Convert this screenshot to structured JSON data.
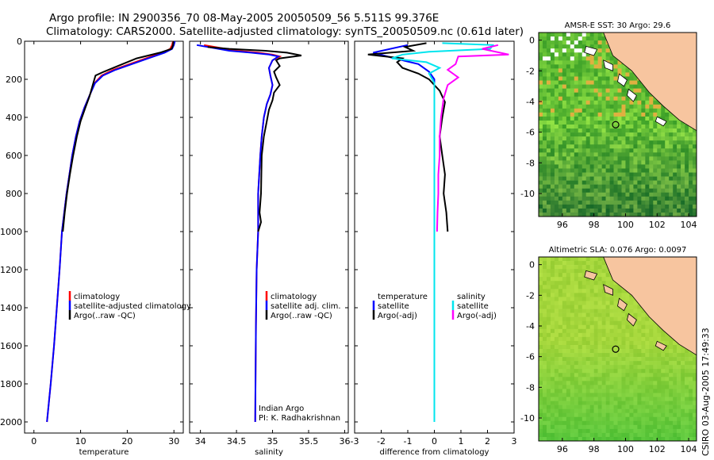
{
  "header": {
    "line1": "Argo profile: IN 2900356_70 08-May-2005 20050509_56 5.511S 99.376E",
    "line2": "Climatology: CARS2000. Satellite-adjusted climatology: synTS_20050509.nc (0.61d later)"
  },
  "stamp": "CSIRO 03-Aug-2005 17:49:33",
  "colors": {
    "red": "#ff0000",
    "blue": "#0000ff",
    "black": "#000000",
    "cyan": "#00e5ee",
    "magenta": "#ff00ff",
    "land": "#f7c59f",
    "coast": "#000000"
  },
  "chart_data": [
    {
      "id": "temp",
      "type": "line",
      "xlabel": "temperature",
      "xlim": [
        -2,
        32
      ],
      "xticks": [
        0,
        10,
        20,
        30
      ],
      "ylim": [
        0,
        2050
      ],
      "yticks": [
        0,
        200,
        400,
        600,
        800,
        1000,
        1200,
        1400,
        1600,
        1800,
        2000
      ],
      "ylabel_reversed": true,
      "legend": [
        "climatology",
        "satellite-adjusted climatology",
        "Argo(..raw -QC)"
      ],
      "series": [
        {
          "name": "climatology",
          "color": "red",
          "points": [
            [
              29.8,
              0
            ],
            [
              29.6,
              20
            ],
            [
              29.2,
              40
            ],
            [
              27.5,
              60
            ],
            [
              24,
              90
            ],
            [
              20.5,
              120
            ],
            [
              17,
              150
            ],
            [
              14.5,
              180
            ],
            [
              13,
              220
            ],
            [
              12,
              280
            ],
            [
              10.8,
              350
            ],
            [
              9.8,
              420
            ],
            [
              9,
              500
            ],
            [
              8.2,
              600
            ],
            [
              7.6,
              700
            ],
            [
              7,
              800
            ],
            [
              6.5,
              900
            ],
            [
              6,
              1000
            ],
            [
              5.5,
              1200
            ],
            [
              4.9,
              1400
            ],
            [
              4.3,
              1600
            ],
            [
              3.6,
              1800
            ],
            [
              2.8,
              2000
            ]
          ]
        },
        {
          "name": "satellite-adjusted climatology",
          "color": "blue",
          "points": [
            [
              30.2,
              0
            ],
            [
              30,
              20
            ],
            [
              29.6,
              40
            ],
            [
              28,
              60
            ],
            [
              24.5,
              90
            ],
            [
              21,
              120
            ],
            [
              17.5,
              150
            ],
            [
              14.8,
              180
            ],
            [
              13.1,
              220
            ],
            [
              12,
              280
            ],
            [
              10.8,
              350
            ],
            [
              9.8,
              420
            ],
            [
              9,
              500
            ],
            [
              8.2,
              600
            ],
            [
              7.6,
              700
            ],
            [
              7,
              800
            ],
            [
              6.5,
              900
            ],
            [
              6,
              1000
            ],
            [
              5.5,
              1200
            ],
            [
              4.9,
              1400
            ],
            [
              4.3,
              1600
            ],
            [
              3.6,
              1800
            ],
            [
              2.8,
              2000
            ]
          ]
        },
        {
          "name": "Argo(..raw -QC)",
          "color": "black",
          "points": [
            [
              29.9,
              0
            ],
            [
              29.8,
              20
            ],
            [
              29.5,
              40
            ],
            [
              27,
              60
            ],
            [
              22,
              90
            ],
            [
              18,
              130
            ],
            [
              15,
              160
            ],
            [
              13.2,
              180
            ],
            [
              12.6,
              230
            ],
            [
              11.9,
              290
            ],
            [
              11,
              350
            ],
            [
              10,
              420
            ],
            [
              9.2,
              500
            ],
            [
              8.4,
              600
            ],
            [
              7.7,
              700
            ],
            [
              7.1,
              800
            ],
            [
              6.6,
              900
            ],
            [
              6.2,
              1000
            ]
          ]
        }
      ]
    },
    {
      "id": "salt",
      "type": "line",
      "xlabel": "salinity",
      "xlim": [
        33.85,
        36.05
      ],
      "xticks": [
        34,
        34.5,
        35,
        35.5,
        36
      ],
      "xticklabels": [
        "34",
        "34.5",
        "35",
        "35.5",
        "36"
      ],
      "ylim": [
        0,
        2050
      ],
      "legend": [
        "climatology",
        "satellite adj. clim.",
        "Argo(..raw -QC)"
      ],
      "annotation": [
        "Indian Argo",
        "PI: K. Radhakrishnan"
      ],
      "series": [
        {
          "name": "climatology",
          "color": "red",
          "points": [
            [
              34.05,
              20
            ],
            [
              34.2,
              30
            ],
            [
              34.5,
              50
            ],
            [
              34.8,
              60
            ],
            [
              35.0,
              70
            ],
            [
              35.1,
              80
            ],
            [
              35.0,
              100
            ],
            [
              34.95,
              140
            ],
            [
              34.97,
              180
            ],
            [
              35.0,
              230
            ],
            [
              34.97,
              280
            ],
            [
              34.92,
              330
            ],
            [
              34.88,
              400
            ],
            [
              34.85,
              500
            ],
            [
              34.83,
              600
            ],
            [
              34.8,
              800
            ],
            [
              34.8,
              1000
            ],
            [
              34.78,
              1200
            ],
            [
              34.77,
              1500
            ],
            [
              34.76,
              2000
            ]
          ]
        },
        {
          "name": "satellite adj. clim.",
          "color": "blue",
          "points": [
            [
              33.95,
              20
            ],
            [
              34.1,
              30
            ],
            [
              34.4,
              50
            ],
            [
              34.7,
              60
            ],
            [
              34.95,
              70
            ],
            [
              35.08,
              80
            ],
            [
              35.0,
              100
            ],
            [
              34.95,
              140
            ],
            [
              34.97,
              180
            ],
            [
              35.0,
              230
            ],
            [
              34.97,
              280
            ],
            [
              34.92,
              330
            ],
            [
              34.88,
              400
            ],
            [
              34.85,
              500
            ],
            [
              34.83,
              600
            ],
            [
              34.8,
              800
            ],
            [
              34.8,
              1000
            ],
            [
              34.78,
              1200
            ],
            [
              34.77,
              1500
            ],
            [
              34.76,
              2000
            ]
          ]
        },
        {
          "name": "Argo(..raw -QC)",
          "color": "black",
          "points": [
            [
              34.1,
              30
            ],
            [
              34.4,
              40
            ],
            [
              34.9,
              50
            ],
            [
              35.2,
              60
            ],
            [
              35.4,
              75
            ],
            [
              35.1,
              90
            ],
            [
              35.05,
              100
            ],
            [
              35.1,
              130
            ],
            [
              35.02,
              160
            ],
            [
              35.05,
              190
            ],
            [
              35.1,
              230
            ],
            [
              35.02,
              270
            ],
            [
              35.0,
              310
            ],
            [
              34.95,
              360
            ],
            [
              34.92,
              420
            ],
            [
              34.88,
              500
            ],
            [
              34.85,
              600
            ],
            [
              34.84,
              800
            ],
            [
              34.82,
              900
            ],
            [
              34.84,
              950
            ],
            [
              34.8,
              1000
            ]
          ]
        }
      ]
    },
    {
      "id": "diff",
      "type": "line",
      "xlabel": "difference from climatology",
      "xlim": [
        -3,
        3
      ],
      "xticks": [
        -3,
        -2,
        -1,
        0,
        1,
        2,
        3
      ],
      "ylim": [
        0,
        2050
      ],
      "legend": [
        "temperature",
        "satellite",
        "Argo(-adj)",
        "salinity",
        "satellite",
        "Argo(-adj)"
      ],
      "series": [
        {
          "name": "temperature satellite",
          "color": "blue",
          "points": [
            [
              -1,
              20
            ],
            [
              -2.3,
              60
            ],
            [
              -1.5,
              90
            ],
            [
              -0.6,
              120
            ],
            [
              -0.2,
              160
            ],
            [
              0,
              200
            ],
            [
              0,
              400
            ],
            [
              0,
              2000
            ]
          ]
        },
        {
          "name": "temperature Argo(-adj)",
          "color": "black",
          "points": [
            [
              -0.3,
              10
            ],
            [
              -1.1,
              30
            ],
            [
              -0.8,
              50
            ],
            [
              -2.5,
              70
            ],
            [
              -1.2,
              90
            ],
            [
              -1.4,
              110
            ],
            [
              -1.2,
              140
            ],
            [
              -0.6,
              170
            ],
            [
              -0.2,
              200
            ],
            [
              0.2,
              260
            ],
            [
              0.4,
              320
            ],
            [
              0.3,
              400
            ],
            [
              0.2,
              500
            ],
            [
              0.3,
              600
            ],
            [
              0.4,
              700
            ],
            [
              0.35,
              800
            ],
            [
              0.45,
              900
            ],
            [
              0.5,
              1000
            ]
          ]
        },
        {
          "name": "salinity satellite",
          "color": "cyan",
          "points": [
            [
              0.3,
              10
            ],
            [
              2.2,
              20
            ],
            [
              2.1,
              40
            ],
            [
              -0.2,
              55
            ],
            [
              -1.2,
              70
            ],
            [
              -1.6,
              90
            ],
            [
              -0.3,
              110
            ],
            [
              0.2,
              140
            ],
            [
              -0.2,
              170
            ],
            [
              0,
              220
            ],
            [
              0,
              400
            ],
            [
              0,
              2000
            ]
          ]
        },
        {
          "name": "salinity Argo(-adj)",
          "color": "magenta",
          "points": [
            [
              2.4,
              20
            ],
            [
              1.8,
              40
            ],
            [
              2.8,
              70
            ],
            [
              0.9,
              80
            ],
            [
              0.8,
              120
            ],
            [
              0.5,
              150
            ],
            [
              0.9,
              190
            ],
            [
              0.5,
              230
            ],
            [
              0.35,
              300
            ],
            [
              0.25,
              400
            ],
            [
              0.2,
              500
            ],
            [
              0.2,
              600
            ],
            [
              0.15,
              700
            ],
            [
              0.15,
              800
            ],
            [
              0.12,
              900
            ],
            [
              0.1,
              1000
            ]
          ]
        }
      ]
    },
    {
      "id": "sst_map",
      "type": "heatmap",
      "title": "AMSR-E SST: 30 Argo: 29.6",
      "xlim": [
        94.5,
        104.5
      ],
      "xticks": [
        96,
        98,
        100,
        102,
        104
      ],
      "ylim": [
        -11.5,
        0.5
      ],
      "yticks": [
        0,
        -2,
        -4,
        -6,
        -8,
        -10
      ],
      "marker": [
        99.376,
        -5.511
      ]
    },
    {
      "id": "sla_map",
      "type": "heatmap",
      "title": "Altimetric SLA: 0.076 Argo: 0.0097",
      "xlim": [
        94.5,
        104.5
      ],
      "xticks": [
        96,
        98,
        100,
        102,
        104
      ],
      "ylim": [
        -11.5,
        0.5
      ],
      "yticks": [
        0,
        -2,
        -4,
        -6,
        -8,
        -10
      ],
      "marker": [
        99.376,
        -5.511
      ]
    }
  ]
}
